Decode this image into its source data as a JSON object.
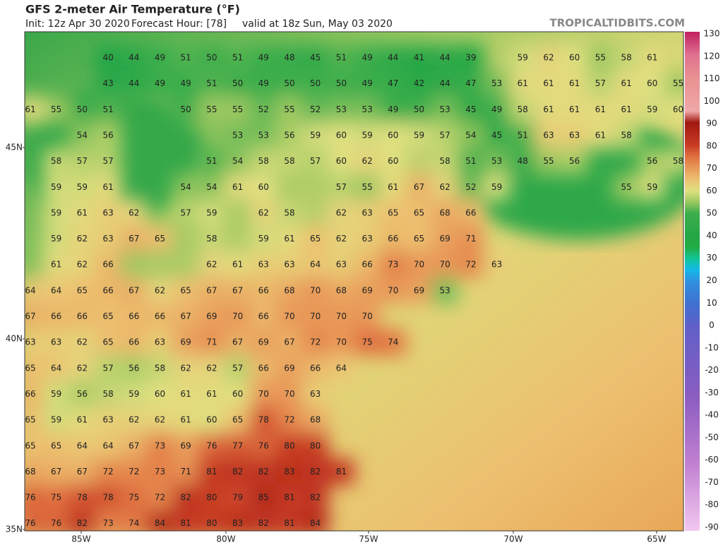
{
  "header": {
    "title": "GFS 2-meter Air Temperature (°F)",
    "init": "Init: 12z Apr 30 2020",
    "forecast_hour": "Forecast Hour: [78]",
    "valid": "valid at 18z Sun, May 03 2020",
    "brand": "TROPICALTIDBITS.COM"
  },
  "map": {
    "lat_labels": [
      "45N",
      "40N",
      "35N"
    ],
    "lon_labels": [
      "85W",
      "80W",
      "75W",
      "70W",
      "65W"
    ],
    "temperature_grid": [
      [
        null,
        null,
        null,
        40,
        44,
        49,
        51,
        50,
        51,
        49,
        48,
        45,
        51,
        49,
        44,
        41,
        44,
        39,
        null,
        59,
        62,
        60,
        55,
        58,
        61,
        null
      ],
      [
        null,
        null,
        null,
        43,
        44,
        49,
        49,
        51,
        50,
        49,
        50,
        50,
        50,
        49,
        47,
        42,
        44,
        47,
        53,
        61,
        61,
        61,
        57,
        61,
        60,
        55
      ],
      [
        61,
        55,
        50,
        51,
        null,
        null,
        50,
        55,
        55,
        52,
        55,
        52,
        53,
        53,
        49,
        50,
        53,
        45,
        49,
        58,
        61,
        61,
        61,
        61,
        59,
        60
      ],
      [
        null,
        null,
        54,
        56,
        null,
        null,
        null,
        null,
        53,
        53,
        56,
        59,
        60,
        59,
        60,
        59,
        57,
        54,
        45,
        51,
        63,
        63,
        61,
        58,
        null,
        null
      ],
      [
        null,
        58,
        57,
        57,
        null,
        null,
        null,
        51,
        54,
        58,
        58,
        57,
        60,
        62,
        60,
        null,
        58,
        51,
        53,
        48,
        55,
        56,
        null,
        null,
        56,
        58
      ],
      [
        null,
        59,
        59,
        61,
        null,
        null,
        54,
        54,
        61,
        60,
        null,
        null,
        57,
        55,
        61,
        67,
        62,
        52,
        59,
        null,
        null,
        null,
        null,
        55,
        59,
        null
      ],
      [
        null,
        59,
        61,
        63,
        62,
        null,
        57,
        59,
        null,
        62,
        58,
        null,
        62,
        63,
        65,
        65,
        68,
        66,
        null,
        null,
        null,
        null,
        null,
        null,
        null,
        null
      ],
      [
        null,
        59,
        62,
        63,
        67,
        65,
        null,
        58,
        null,
        59,
        61,
        65,
        62,
        63,
        66,
        65,
        69,
        71,
        null,
        null,
        null,
        null,
        null,
        null,
        null,
        null
      ],
      [
        null,
        61,
        62,
        66,
        null,
        null,
        null,
        62,
        61,
        63,
        63,
        64,
        63,
        66,
        73,
        70,
        70,
        72,
        63,
        null,
        null,
        null,
        null,
        null,
        null,
        null
      ],
      [
        64,
        64,
        65,
        66,
        67,
        62,
        65,
        67,
        67,
        66,
        68,
        70,
        68,
        69,
        70,
        69,
        53,
        null,
        null,
        null,
        null,
        null,
        null,
        null,
        null,
        null
      ],
      [
        67,
        66,
        66,
        65,
        66,
        66,
        67,
        69,
        70,
        66,
        70,
        70,
        70,
        70,
        null,
        null,
        null,
        null,
        null,
        null,
        null,
        null,
        null,
        null,
        null,
        null
      ],
      [
        63,
        63,
        62,
        65,
        66,
        63,
        69,
        71,
        67,
        69,
        67,
        72,
        70,
        75,
        74,
        null,
        null,
        null,
        null,
        null,
        null,
        null,
        null,
        null,
        null,
        null
      ],
      [
        65,
        64,
        62,
        57,
        56,
        58,
        62,
        62,
        57,
        66,
        69,
        66,
        64,
        null,
        null,
        null,
        null,
        null,
        null,
        null,
        null,
        null,
        null,
        null,
        null,
        null
      ],
      [
        66,
        59,
        56,
        58,
        59,
        60,
        61,
        61,
        60,
        70,
        70,
        63,
        null,
        null,
        null,
        null,
        null,
        null,
        null,
        null,
        null,
        null,
        null,
        null,
        null,
        null
      ],
      [
        65,
        59,
        61,
        63,
        62,
        62,
        61,
        60,
        65,
        78,
        72,
        68,
        null,
        null,
        null,
        null,
        null,
        null,
        null,
        null,
        null,
        null,
        null,
        null,
        null,
        null
      ],
      [
        65,
        65,
        64,
        64,
        67,
        73,
        69,
        76,
        77,
        76,
        80,
        80,
        null,
        null,
        null,
        null,
        null,
        null,
        null,
        null,
        null,
        null,
        null,
        null,
        null,
        null
      ],
      [
        68,
        67,
        67,
        72,
        72,
        73,
        71,
        81,
        82,
        82,
        83,
        82,
        81,
        null,
        null,
        null,
        null,
        null,
        null,
        null,
        null,
        null,
        null,
        null,
        null,
        null
      ],
      [
        76,
        75,
        78,
        78,
        75,
        72,
        82,
        80,
        79,
        85,
        81,
        82,
        null,
        null,
        null,
        null,
        null,
        null,
        null,
        null,
        null,
        null,
        null,
        null,
        null,
        null
      ],
      [
        76,
        76,
        82,
        73,
        74,
        84,
        81,
        80,
        83,
        82,
        81,
        84,
        null,
        null,
        null,
        null,
        null,
        null,
        null,
        null,
        null,
        null,
        null,
        null,
        null,
        null
      ]
    ]
  },
  "colorbar": {
    "ticks": [
      130,
      120,
      110,
      100,
      90,
      80,
      70,
      60,
      50,
      40,
      30,
      20,
      10,
      0,
      -10,
      -20,
      -30,
      -40,
      -50,
      -60,
      -70,
      -80,
      -90
    ]
  }
}
